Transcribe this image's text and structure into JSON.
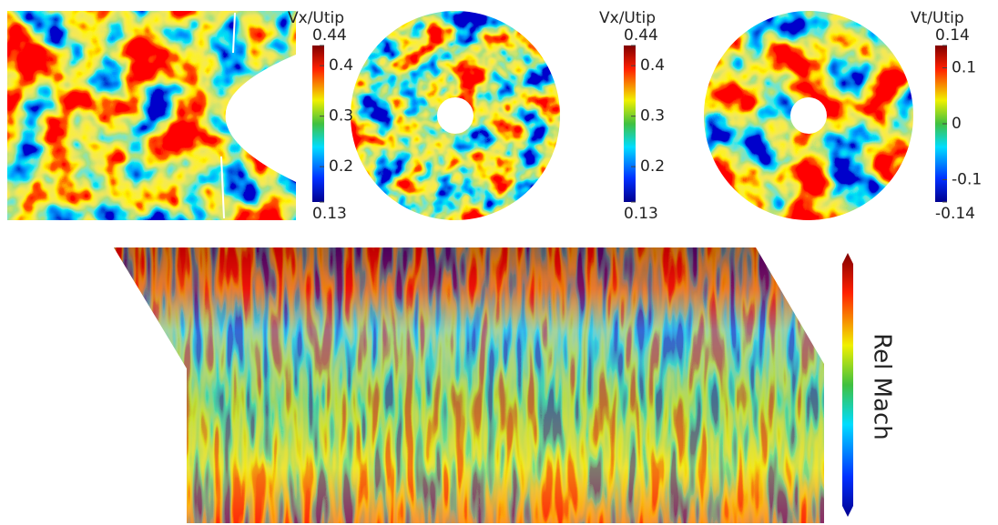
{
  "panels": [
    {
      "colorbar": {
        "title": "Vx/Utip",
        "ticks": [
          0.44,
          0.4,
          0.3,
          0.2,
          0.13
        ]
      }
    },
    {
      "colorbar": {
        "title": "Vx/Utip",
        "ticks": [
          0.44,
          0.4,
          0.3,
          0.2,
          0.13
        ]
      }
    },
    {
      "colorbar": {
        "title": "Vt/Utip",
        "ticks": [
          0.14,
          0.1,
          0,
          -0.1,
          -0.14
        ]
      }
    },
    {
      "colorbar": {
        "title": "Rel Mach"
      }
    }
  ]
}
